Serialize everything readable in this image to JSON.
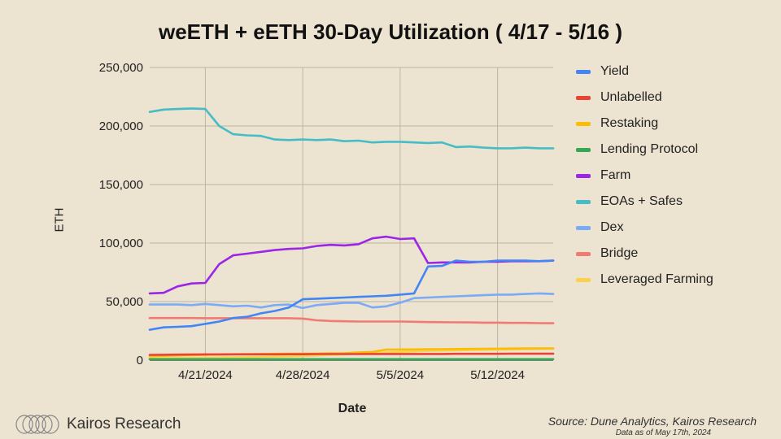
{
  "header": {
    "title": "weETH + eETH 30-Day Utilization ( 4/17 - 5/16 )"
  },
  "footer": {
    "brand": "Kairos Research",
    "source": "Source: Dune Analytics, Kairos Research",
    "as_of": "Data as of May 17th, 2024"
  },
  "chart_data": {
    "type": "line",
    "title": "weETH + eETH 30-Day Utilization ( 4/17 - 5/16 )",
    "xlabel": "Date",
    "ylabel": "ETH",
    "x": [
      "4/17/2024",
      "4/18/2024",
      "4/19/2024",
      "4/20/2024",
      "4/21/2024",
      "4/22/2024",
      "4/23/2024",
      "4/24/2024",
      "4/25/2024",
      "4/26/2024",
      "4/27/2024",
      "4/28/2024",
      "4/29/2024",
      "4/30/2024",
      "5/1/2024",
      "5/2/2024",
      "5/3/2024",
      "5/4/2024",
      "5/5/2024",
      "5/6/2024",
      "5/7/2024",
      "5/8/2024",
      "5/9/2024",
      "5/10/2024",
      "5/11/2024",
      "5/12/2024",
      "5/13/2024",
      "5/14/2024",
      "5/15/2024",
      "5/16/2024"
    ],
    "x_ticks": [
      "4/21/2024",
      "4/28/2024",
      "5/5/2024",
      "5/12/2024"
    ],
    "y_ticks": [
      "0",
      "50,000",
      "100,000",
      "150,000",
      "200,000",
      "250,000"
    ],
    "ylim": [
      0,
      250000
    ],
    "grid": true,
    "legend_position": "right",
    "series": [
      {
        "name": "Yield",
        "color": "#4285f4",
        "values": [
          26000,
          28000,
          28500,
          29000,
          31000,
          33000,
          36000,
          37000,
          40000,
          42000,
          45000,
          52000,
          52500,
          53000,
          53500,
          54000,
          54500,
          55000,
          56000,
          57000,
          80000,
          80500,
          85000,
          84000,
          84000,
          85000,
          85000,
          85000,
          84500,
          85000
        ]
      },
      {
        "name": "Unlabelled",
        "color": "#ea4335",
        "values": [
          4500,
          4600,
          4700,
          4800,
          4900,
          4900,
          5000,
          5000,
          5000,
          5000,
          5100,
          5100,
          5200,
          5200,
          5200,
          5200,
          5300,
          5300,
          5300,
          5300,
          5300,
          5300,
          5400,
          5400,
          5400,
          5400,
          5500,
          5500,
          5500,
          5500
        ]
      },
      {
        "name": "Restaking",
        "color": "#fbbc04",
        "values": [
          3500,
          3700,
          4000,
          4300,
          4600,
          4800,
          5000,
          5200,
          5300,
          5400,
          5500,
          5500,
          5600,
          5800,
          6000,
          6500,
          7000,
          9000,
          9100,
          9200,
          9300,
          9400,
          9500,
          9600,
          9700,
          9800,
          9900,
          10000,
          10000,
          10100
        ]
      },
      {
        "name": "Lending Protocol",
        "color": "#34a853",
        "values": [
          800,
          800,
          800,
          800,
          800,
          800,
          800,
          800,
          800,
          800,
          800,
          800,
          800,
          800,
          800,
          800,
          800,
          800,
          800,
          800,
          800,
          800,
          800,
          800,
          800,
          800,
          800,
          800,
          800,
          800
        ]
      },
      {
        "name": "Farm",
        "color": "#9b26e6",
        "values": [
          57000,
          57500,
          63000,
          65500,
          66000,
          82000,
          89500,
          91000,
          92500,
          94000,
          95000,
          95500,
          97500,
          98500,
          98000,
          99000,
          104000,
          105500,
          103500,
          104000,
          83000,
          83500,
          83500,
          83500,
          84000,
          84000,
          84500,
          84500,
          84500,
          85000
        ]
      },
      {
        "name": "EOAs + Safes",
        "color": "#46bdc6",
        "values": [
          212000,
          214000,
          214500,
          215000,
          214500,
          200000,
          193000,
          192000,
          191500,
          188500,
          188000,
          188500,
          188000,
          188500,
          187000,
          187500,
          186000,
          186500,
          186500,
          186000,
          185500,
          186000,
          182000,
          182500,
          181500,
          181000,
          181000,
          181500,
          181000,
          181000
        ]
      },
      {
        "name": "Dex",
        "color": "#7baaf7",
        "values": [
          47500,
          47500,
          47500,
          47000,
          48000,
          47000,
          46000,
          46500,
          45000,
          47000,
          47500,
          44500,
          47000,
          48000,
          49000,
          49000,
          45000,
          46000,
          49000,
          53000,
          53500,
          54000,
          54500,
          55000,
          55500,
          56000,
          56000,
          56500,
          57000,
          56500
        ]
      },
      {
        "name": "Bridge",
        "color": "#f07b72",
        "values": [
          36000,
          36000,
          36000,
          36000,
          35800,
          35800,
          35800,
          35800,
          35800,
          35800,
          35800,
          35500,
          34000,
          33500,
          33200,
          33000,
          33000,
          33000,
          33000,
          32800,
          32500,
          32400,
          32300,
          32200,
          32000,
          32000,
          31800,
          31800,
          31600,
          31500
        ]
      },
      {
        "name": "Leveraged Farming",
        "color": "#fcd04f",
        "values": [
          1500,
          1600,
          1700,
          1800,
          2000,
          2200,
          2400,
          2600,
          2800,
          3000,
          3200,
          3500,
          4000,
          4500,
          5000,
          5500,
          6000,
          6500,
          7000,
          7500,
          8000,
          8200,
          8400,
          8600,
          8800,
          9000,
          9200,
          9400,
          9600,
          9800
        ]
      }
    ]
  }
}
